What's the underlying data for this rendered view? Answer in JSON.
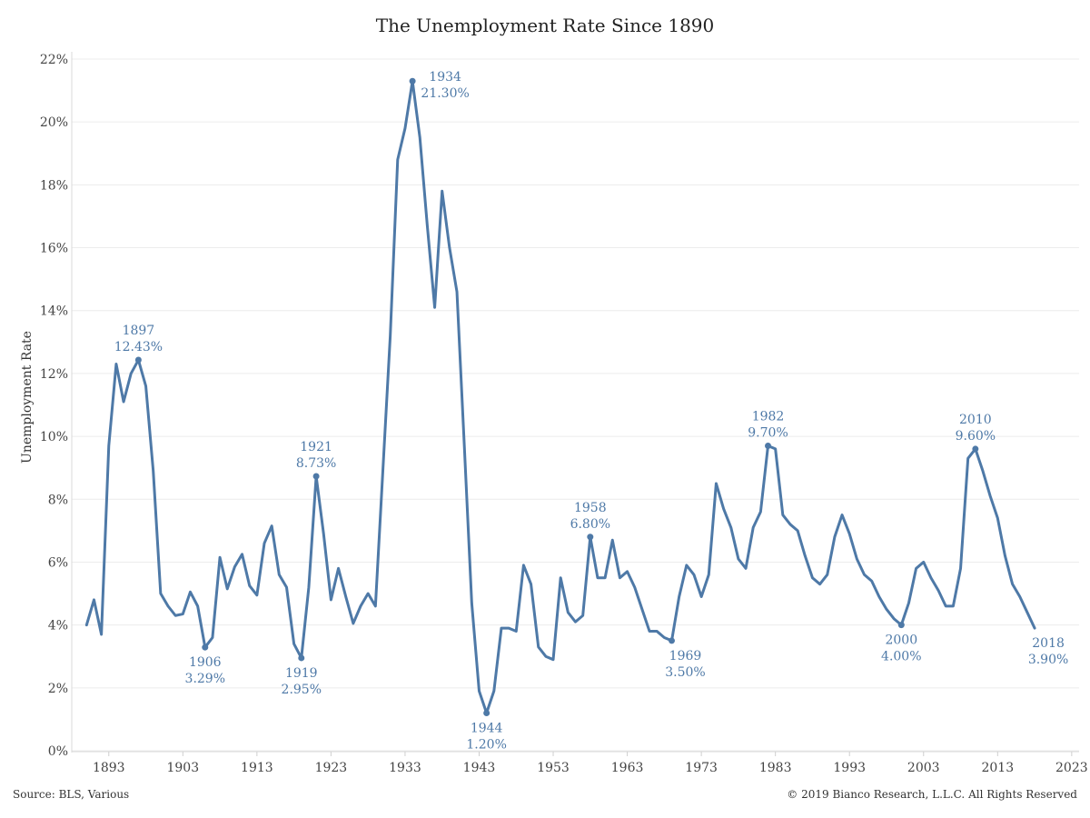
{
  "chart_data": {
    "type": "line",
    "title": "The Unemployment Rate Since 1890",
    "ylabel": "Unemployment Rate",
    "xlabel": "",
    "ylim": [
      0,
      22
    ],
    "xlim": [
      1888,
      2024
    ],
    "yticks": [
      0,
      2,
      4,
      6,
      8,
      10,
      12,
      14,
      16,
      18,
      20,
      22
    ],
    "ytick_labels": [
      "0%",
      "2%",
      "4%",
      "6%",
      "8%",
      "10%",
      "12%",
      "14%",
      "16%",
      "18%",
      "20%",
      "22%"
    ],
    "xticks": [
      1893,
      1903,
      1913,
      1923,
      1933,
      1943,
      1953,
      1963,
      1973,
      1983,
      1993,
      2003,
      2013,
      2023
    ],
    "xtick_labels": [
      "1893",
      "1903",
      "1913",
      "1923",
      "1933",
      "1943",
      "1953",
      "1963",
      "1973",
      "1983",
      "1993",
      "2003",
      "2013",
      "2023"
    ],
    "grid": true,
    "color": "#4e79a7",
    "series": [
      {
        "x": [
          1890,
          1891,
          1892,
          1893,
          1894,
          1895,
          1896,
          1897,
          1898,
          1899,
          1900,
          1901,
          1902,
          1903,
          1904,
          1905,
          1906,
          1907,
          1908,
          1909,
          1910,
          1911,
          1912,
          1913,
          1914,
          1915,
          1916,
          1917,
          1918,
          1919,
          1920,
          1921,
          1922,
          1923,
          1924,
          1925,
          1926,
          1927,
          1928,
          1929,
          1930,
          1931,
          1932,
          1933,
          1934,
          1935,
          1936,
          1937,
          1938,
          1939,
          1940,
          1941,
          1942,
          1943,
          1944,
          1945,
          1946,
          1947,
          1948,
          1949,
          1950,
          1951,
          1952,
          1953,
          1954,
          1955,
          1956,
          1957,
          1958,
          1959,
          1960,
          1961,
          1962,
          1963,
          1964,
          1965,
          1966,
          1967,
          1968,
          1969,
          1970,
          1971,
          1972,
          1973,
          1974,
          1975,
          1976,
          1977,
          1978,
          1979,
          1980,
          1981,
          1982,
          1983,
          1984,
          1985,
          1986,
          1987,
          1988,
          1989,
          1990,
          1991,
          1992,
          1993,
          1994,
          1995,
          1996,
          1997,
          1998,
          1999,
          2000,
          2001,
          2002,
          2003,
          2004,
          2005,
          2006,
          2007,
          2008,
          2009,
          2010,
          2011,
          2012,
          2013,
          2014,
          2015,
          2016,
          2017,
          2018
        ],
        "values": [
          4.0,
          4.8,
          3.7,
          9.7,
          12.3,
          11.1,
          12.0,
          12.43,
          11.6,
          8.9,
          5.0,
          4.6,
          4.3,
          4.35,
          5.05,
          4.6,
          3.29,
          3.6,
          6.15,
          5.15,
          5.85,
          6.25,
          5.25,
          4.95,
          6.6,
          7.15,
          5.6,
          5.2,
          3.4,
          2.95,
          5.2,
          8.73,
          6.9,
          4.8,
          5.8,
          4.9,
          4.05,
          4.6,
          5.0,
          4.6,
          8.9,
          13.2,
          18.8,
          19.8,
          21.3,
          19.5,
          16.7,
          14.1,
          17.8,
          16.0,
          14.6,
          9.7,
          4.7,
          1.9,
          1.2,
          1.9,
          3.9,
          3.9,
          3.8,
          5.9,
          5.3,
          3.3,
          3.0,
          2.9,
          5.5,
          4.4,
          4.1,
          4.3,
          6.8,
          5.5,
          5.5,
          6.7,
          5.5,
          5.7,
          5.2,
          4.5,
          3.8,
          3.8,
          3.6,
          3.5,
          4.9,
          5.9,
          5.6,
          4.9,
          5.6,
          8.5,
          7.7,
          7.1,
          6.1,
          5.8,
          7.1,
          7.6,
          9.7,
          9.6,
          7.5,
          7.2,
          7.0,
          6.2,
          5.5,
          5.3,
          5.6,
          6.8,
          7.5,
          6.9,
          6.1,
          5.6,
          5.4,
          4.9,
          4.5,
          4.2,
          4.0,
          4.7,
          5.8,
          6.0,
          5.5,
          5.1,
          4.6,
          4.6,
          5.8,
          9.3,
          9.6,
          8.9,
          8.1,
          7.4,
          6.2,
          5.3,
          4.9,
          4.4,
          3.9
        ]
      }
    ],
    "annotations": [
      {
        "year": 1897,
        "value": 12.43,
        "label_year": "1897",
        "label_value": "12.43%",
        "position": "above",
        "marker": true
      },
      {
        "year": 1906,
        "value": 3.29,
        "label_year": "1906",
        "label_value": "3.29%",
        "position": "below",
        "marker": true
      },
      {
        "year": 1919,
        "value": 2.95,
        "label_year": "1919",
        "label_value": "2.95%",
        "position": "below",
        "marker": true
      },
      {
        "year": 1921,
        "value": 8.73,
        "label_year": "1921",
        "label_value": "8.73%",
        "position": "above",
        "marker": true
      },
      {
        "year": 1934,
        "value": 21.3,
        "label_year": "1934",
        "label_value": "21.30%",
        "position": "right",
        "marker": true
      },
      {
        "year": 1944,
        "value": 1.2,
        "label_year": "1944",
        "label_value": "1.20%",
        "position": "below",
        "marker": true
      },
      {
        "year": 1958,
        "value": 6.8,
        "label_year": "1958",
        "label_value": "6.80%",
        "position": "above",
        "marker": true
      },
      {
        "year": 1969,
        "value": 3.5,
        "label_year": "1969",
        "label_value": "3.50%",
        "position": "below-right",
        "marker": true
      },
      {
        "year": 1982,
        "value": 9.7,
        "label_year": "1982",
        "label_value": "9.70%",
        "position": "above",
        "marker": true
      },
      {
        "year": 2000,
        "value": 4.0,
        "label_year": "2000",
        "label_value": "4.00%",
        "position": "below",
        "marker": true
      },
      {
        "year": 2010,
        "value": 9.6,
        "label_year": "2010",
        "label_value": "9.60%",
        "position": "above",
        "marker": true
      },
      {
        "year": 2018,
        "value": 3.9,
        "label_year": "2018",
        "label_value": "3.90%",
        "position": "below-right",
        "marker": false
      }
    ]
  },
  "footer": {
    "source": "Source: BLS, Various",
    "copyright": "© 2019 Bianco Research, L.L.C. All Rights Reserved"
  }
}
